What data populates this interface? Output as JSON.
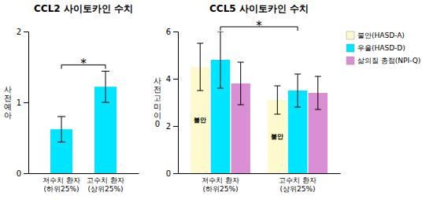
{
  "chart_data": [
    {
      "type": "bar",
      "title": "CCL2 사이토카인 수치",
      "y_label": "사\n전\n예\n아",
      "categories": [
        "저수치 환자\n(하위25%)",
        "고수치 환자\n(상위25%)"
      ],
      "values": [
        0.62,
        1.22
      ],
      "errors": [
        0.18,
        0.22
      ],
      "color": "#00E5FF",
      "ylim": [
        0,
        2
      ],
      "yticks": [
        0,
        1,
        2
      ],
      "grid": false,
      "annotation": {
        "text": "*"
      }
    },
    {
      "type": "bar",
      "title": "CCL5 사이토카인 수치",
      "y_label": "사\n전\n고\n미\n이\n0",
      "categories": [
        "저수치 환자\n(하위25%)",
        "고수치 환자\n(상위25%)"
      ],
      "series": [
        {
          "name": "불안(HASD-A)",
          "color": "#FFFACD",
          "values": [
            4.5,
            3.1
          ],
          "errors": [
            1.0,
            0.6
          ],
          "annotations": [
            "불안",
            "불안"
          ]
        },
        {
          "name": "우울(HASD-D)",
          "color": "#00E5FF",
          "values": [
            4.8,
            3.5
          ],
          "errors": [
            1.2,
            0.7
          ]
        },
        {
          "name": "삶의질 총점(NPI-Q)",
          "color": "#DA8FD4",
          "values": [
            3.8,
            3.4
          ],
          "errors": [
            0.9,
            0.7
          ]
        }
      ],
      "ylim": [
        0,
        6
      ],
      "yticks": [
        0,
        2,
        4,
        6
      ],
      "grid": false,
      "legend": "right",
      "annotation": {
        "text": "*",
        "series": 1
      }
    }
  ]
}
